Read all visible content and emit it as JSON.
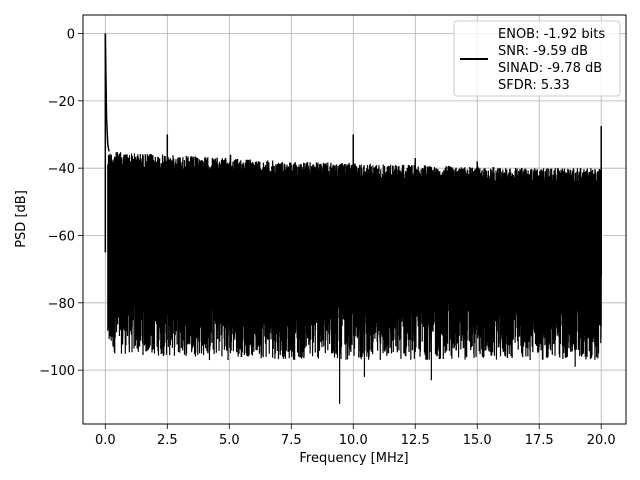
{
  "chart_data": {
    "type": "line",
    "title": "",
    "xlabel": "Frequency [MHz]",
    "ylabel": "PSD [dB]",
    "xlim": [
      -0.9,
      21.0
    ],
    "ylim": [
      -116,
      5.5
    ],
    "xticks": [
      0.0,
      2.5,
      5.0,
      7.5,
      10.0,
      12.5,
      15.0,
      17.5,
      20.0
    ],
    "xtick_labels": [
      "0.0",
      "2.5",
      "5.0",
      "7.5",
      "10.0",
      "12.5",
      "15.0",
      "17.5",
      "20.0"
    ],
    "yticks": [
      0,
      -20,
      -40,
      -60,
      -80,
      -100
    ],
    "ytick_labels": [
      "0",
      "−20",
      "−40",
      "−60",
      "−80",
      "−100"
    ],
    "grid": true,
    "line_color": "#000000",
    "series": [
      {
        "values_description_note": "",
        "x": [
          0.0,
          0.05,
          0.1,
          0.15,
          2.5,
          10.0,
          20.0
        ],
        "y": [
          0,
          -25,
          -33,
          -35,
          -30,
          -30,
          -27.5
        ]
      }
    ],
    "noise_floor": {
      "x": [
        0.1,
        2.5,
        5.0,
        7.5,
        10.0,
        12.5,
        15.0,
        17.5,
        20.0
      ],
      "upper_db": [
        -35,
        -36,
        -37,
        -38,
        -38.5,
        -39,
        -39.5,
        -40,
        -40
      ],
      "lower_db": [
        -85,
        -86,
        -86,
        -87,
        -87,
        -87,
        -87,
        -87,
        -87
      ]
    },
    "deep_notches": [
      {
        "x": 0.2,
        "y": -90
      },
      {
        "x": 1.9,
        "y": -94
      },
      {
        "x": 4.2,
        "y": -97
      },
      {
        "x": 4.95,
        "y": -97
      },
      {
        "x": 7.8,
        "y": -96
      },
      {
        "x": 9.45,
        "y": -110
      },
      {
        "x": 10.45,
        "y": -102
      },
      {
        "x": 11.2,
        "y": -95
      },
      {
        "x": 13.15,
        "y": -103
      },
      {
        "x": 17.5,
        "y": -93
      },
      {
        "x": 18.95,
        "y": -99
      },
      {
        "x": 19.6,
        "y": -95
      }
    ],
    "spurs": [
      {
        "x": 2.5,
        "y": -30
      },
      {
        "x": 10.0,
        "y": -30
      },
      {
        "x": 5.05,
        "y": -36
      },
      {
        "x": 12.5,
        "y": -37
      },
      {
        "x": 15.0,
        "y": -38
      }
    ],
    "legend": {
      "placement": "top-right",
      "lines": [
        "ENOB: -1.92 bits",
        "SNR: -9.59 dB",
        "SINAD: -9.78 dB",
        "SFDR: 5.33"
      ]
    }
  }
}
